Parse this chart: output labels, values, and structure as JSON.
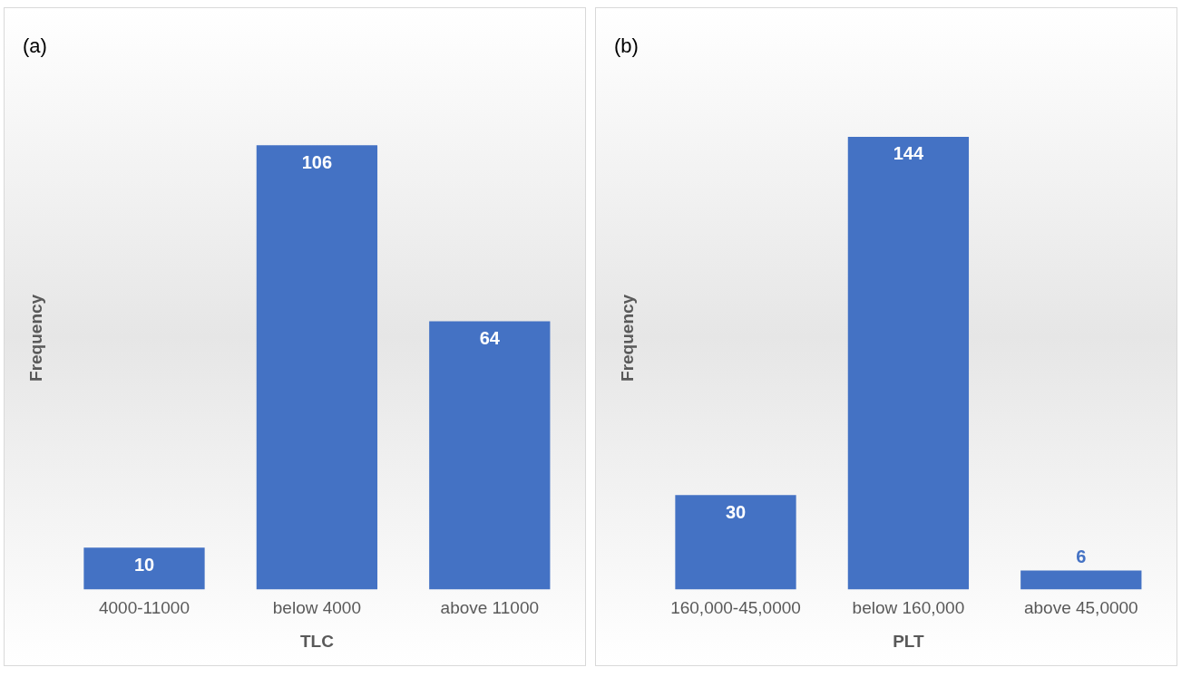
{
  "chart_data": [
    {
      "type": "bar",
      "title": "(a)",
      "xlabel": "TLC",
      "ylabel": "Frequency",
      "categories": [
        "4000-11000",
        "below 4000",
        "above 11000"
      ],
      "values": [
        10,
        106,
        64
      ],
      "color": "#4472c4",
      "data_labels": true,
      "tick_labels": "x",
      "grid": false,
      "legend": false
    },
    {
      "type": "bar",
      "title": "(b)",
      "xlabel": "PLT",
      "ylabel": "Frequency",
      "categories": [
        "160,000-45,0000",
        "below 160,000",
        "above 45,0000"
      ],
      "values": [
        30,
        144,
        6
      ],
      "color": "#4472c4",
      "data_labels": true,
      "tick_labels": "x",
      "grid": false,
      "legend": false
    }
  ]
}
